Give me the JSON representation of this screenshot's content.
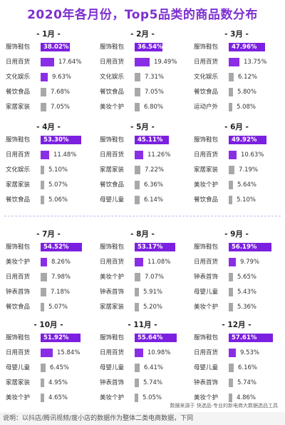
{
  "title": "2020年各月份，Top5品类的商品数分布",
  "source": "数据来源于 快选品·专业的新电商大数据选品工具",
  "note": "说明：以抖店/腾讯视频/度小店的数据作为整体二类电商数据，下同",
  "colors": {
    "top": "#7b20e0",
    "highlight": "#8a2ee6",
    "gray": "#a8a8a8"
  },
  "chart_data": {
    "type": "bar",
    "title": "2020年各月份，Top5品类的商品数分布",
    "unit": "%",
    "months": [
      {
        "label": "- 1月 -",
        "items": [
          {
            "cat": "服饰鞋包",
            "value": 38.02,
            "text": "38.02%"
          },
          {
            "cat": "日用百货",
            "value": 17.64,
            "text": "17.64%"
          },
          {
            "cat": "文化娱乐",
            "value": 9.63,
            "text": "9.63%"
          },
          {
            "cat": "餐饮食品",
            "value": 7.68,
            "text": "7.68%"
          },
          {
            "cat": "家居家装",
            "value": 7.05,
            "text": "7.05%"
          }
        ]
      },
      {
        "label": "- 2月 -",
        "items": [
          {
            "cat": "服饰鞋包",
            "value": 36.54,
            "text": "36.54%"
          },
          {
            "cat": "日用百货",
            "value": 19.49,
            "text": "19.49%"
          },
          {
            "cat": "文化娱乐",
            "value": 7.31,
            "text": "7.31%"
          },
          {
            "cat": "餐饮食品",
            "value": 7.05,
            "text": "7.05%"
          },
          {
            "cat": "美妆个护",
            "value": 6.8,
            "text": "6.80%"
          }
        ]
      },
      {
        "label": "- 3月 -",
        "items": [
          {
            "cat": "服饰鞋包",
            "value": 47.96,
            "text": "47.96%"
          },
          {
            "cat": "日用百货",
            "value": 13.75,
            "text": "13.75%"
          },
          {
            "cat": "文化娱乐",
            "value": 6.12,
            "text": "6.12%"
          },
          {
            "cat": "餐饮食品",
            "value": 5.8,
            "text": "5.80%"
          },
          {
            "cat": "运动户外",
            "value": 5.08,
            "text": "5.08%"
          }
        ]
      },
      {
        "label": "- 4月 -",
        "items": [
          {
            "cat": "服饰鞋包",
            "value": 53.3,
            "text": "53.30%"
          },
          {
            "cat": "日用百货",
            "value": 11.48,
            "text": "11.48%"
          },
          {
            "cat": "文化娱乐",
            "value": 5.1,
            "text": "5.10%"
          },
          {
            "cat": "家居家装",
            "value": 5.07,
            "text": "5.07%"
          },
          {
            "cat": "餐饮食品",
            "value": 5.06,
            "text": "5.06%"
          }
        ]
      },
      {
        "label": "- 5月 -",
        "items": [
          {
            "cat": "服饰鞋包",
            "value": 45.11,
            "text": "45.11%"
          },
          {
            "cat": "日用百货",
            "value": 11.26,
            "text": "11.26%"
          },
          {
            "cat": "家居家装",
            "value": 7.22,
            "text": "7.22%"
          },
          {
            "cat": "餐饮食品",
            "value": 6.36,
            "text": "6.36%"
          },
          {
            "cat": "母婴儿童",
            "value": 6.14,
            "text": "6.14%"
          }
        ]
      },
      {
        "label": "- 6月 -",
        "items": [
          {
            "cat": "服饰鞋包",
            "value": 49.92,
            "text": "49.92%"
          },
          {
            "cat": "日用百货",
            "value": 10.63,
            "text": "10.63%"
          },
          {
            "cat": "家居家装",
            "value": 7.19,
            "text": "7.19%"
          },
          {
            "cat": "美妆个护",
            "value": 5.64,
            "text": "5.64%"
          },
          {
            "cat": "餐饮食品",
            "value": 5.1,
            "text": "5.10%"
          }
        ]
      },
      {
        "label": "- 7月 -",
        "items": [
          {
            "cat": "服饰鞋包",
            "value": 54.52,
            "text": "54.52%"
          },
          {
            "cat": "美妆个护",
            "value": 8.26,
            "text": "8.26%"
          },
          {
            "cat": "日用百货",
            "value": 7.98,
            "text": "7.98%"
          },
          {
            "cat": "钟表首饰",
            "value": 7.18,
            "text": "7.18%"
          },
          {
            "cat": "餐饮食品",
            "value": 5.07,
            "text": "5.07%"
          }
        ]
      },
      {
        "label": "- 8月 -",
        "items": [
          {
            "cat": "服饰鞋包",
            "value": 53.17,
            "text": "53.17%"
          },
          {
            "cat": "日用百货",
            "value": 11.08,
            "text": "11.08%"
          },
          {
            "cat": "美妆个护",
            "value": 7.07,
            "text": "7.07%"
          },
          {
            "cat": "钟表首饰",
            "value": 5.91,
            "text": "5.91%"
          },
          {
            "cat": "家居家装",
            "value": 5.2,
            "text": "5.20%"
          }
        ]
      },
      {
        "label": "- 9月 -",
        "items": [
          {
            "cat": "服饰鞋包",
            "value": 56.19,
            "text": "56.19%"
          },
          {
            "cat": "日用百货",
            "value": 9.79,
            "text": "9.79%"
          },
          {
            "cat": "钟表首饰",
            "value": 5.65,
            "text": "5.65%"
          },
          {
            "cat": "母婴儿童",
            "value": 5.43,
            "text": "5.43%"
          },
          {
            "cat": "美妆个护",
            "value": 5.36,
            "text": "5.36%"
          }
        ]
      },
      {
        "label": "- 10月 -",
        "items": [
          {
            "cat": "服饰鞋包",
            "value": 51.92,
            "text": "51.92%"
          },
          {
            "cat": "日用百货",
            "value": 15.84,
            "text": "15.84%"
          },
          {
            "cat": "母婴儿童",
            "value": 6.45,
            "text": "6.45%"
          },
          {
            "cat": "家居家装",
            "value": 4.95,
            "text": "4.95%"
          },
          {
            "cat": "美妆个护",
            "value": 4.65,
            "text": "4.65%"
          }
        ]
      },
      {
        "label": "- 11月 -",
        "items": [
          {
            "cat": "服饰鞋包",
            "value": 55.64,
            "text": "55.64%"
          },
          {
            "cat": "日用百货",
            "value": 10.98,
            "text": "10.98%"
          },
          {
            "cat": "母婴儿童",
            "value": 6.41,
            "text": "6.41%"
          },
          {
            "cat": "钟表首饰",
            "value": 5.74,
            "text": "5.74%"
          },
          {
            "cat": "美妆个护",
            "value": 5.05,
            "text": "5.05%"
          }
        ]
      },
      {
        "label": "- 12月 -",
        "items": [
          {
            "cat": "服饰鞋包",
            "value": 57.61,
            "text": "57.61%"
          },
          {
            "cat": "日用百货",
            "value": 9.53,
            "text": "9.53%"
          },
          {
            "cat": "母婴儿童",
            "value": 6.16,
            "text": "6.16%"
          },
          {
            "cat": "钟表首饰",
            "value": 5.74,
            "text": "5.74%"
          },
          {
            "cat": "美妆个护",
            "value": 4.86,
            "text": "4.86%"
          }
        ]
      }
    ]
  }
}
